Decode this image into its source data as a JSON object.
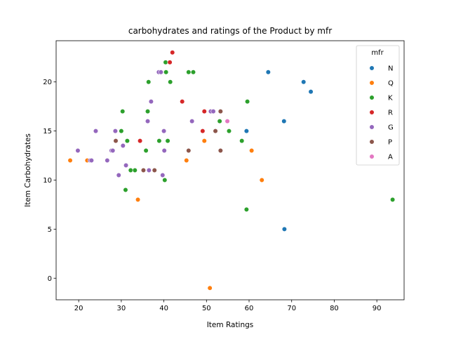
{
  "chart_data": {
    "type": "scatter",
    "title": "carbohydrates and ratings of the Product by mfr",
    "xlabel": "Item Ratings",
    "ylabel": "Item Carbohydrates",
    "xlim": [
      14.7,
      96.4
    ],
    "ylim": [
      -2.2,
      24.2
    ],
    "xticks": [
      20,
      30,
      40,
      50,
      60,
      70,
      80,
      90
    ],
    "yticks": [
      0,
      5,
      10,
      15,
      20
    ],
    "grid": false,
    "legend": {
      "title": "mfr",
      "placement": "top-right"
    },
    "series": [
      {
        "name": "N",
        "color": "#1f77b4",
        "points": [
          [
            64.5,
            21
          ],
          [
            72.8,
            20
          ],
          [
            74.5,
            19
          ],
          [
            68.2,
            16
          ],
          [
            59.4,
            15
          ],
          [
            68.3,
            5
          ]
        ]
      },
      {
        "name": "Q",
        "color": "#ff7f0e",
        "points": [
          [
            18.0,
            12
          ],
          [
            22.0,
            12
          ],
          [
            33.9,
            8
          ],
          [
            45.3,
            12
          ],
          [
            49.5,
            14
          ],
          [
            50.8,
            -1
          ],
          [
            60.6,
            13
          ],
          [
            63.0,
            10
          ]
        ]
      },
      {
        "name": "K",
        "color": "#2ca02c",
        "points": [
          [
            30.0,
            15
          ],
          [
            30.3,
            17
          ],
          [
            31.0,
            9
          ],
          [
            31.4,
            14
          ],
          [
            32.2,
            11
          ],
          [
            33.2,
            11
          ],
          [
            35.8,
            13
          ],
          [
            36.2,
            17
          ],
          [
            36.4,
            20
          ],
          [
            38.9,
            14
          ],
          [
            40.2,
            10
          ],
          [
            40.4,
            22
          ],
          [
            40.5,
            21
          ],
          [
            40.9,
            14
          ],
          [
            41.5,
            20
          ],
          [
            45.8,
            21
          ],
          [
            46.9,
            21
          ],
          [
            53.1,
            16
          ],
          [
            55.3,
            15
          ],
          [
            58.3,
            14
          ],
          [
            59.4,
            7
          ],
          [
            59.6,
            18
          ],
          [
            93.7,
            8
          ]
        ]
      },
      {
        "name": "R",
        "color": "#d62728",
        "points": [
          [
            34.4,
            14
          ],
          [
            41.4,
            22
          ],
          [
            42.0,
            23
          ],
          [
            44.3,
            18
          ],
          [
            49.1,
            15
          ],
          [
            49.5,
            17
          ]
        ]
      },
      {
        "name": "G",
        "color": "#9467bd",
        "points": [
          [
            19.8,
            13
          ],
          [
            22.7,
            12
          ],
          [
            23.0,
            12
          ],
          [
            24.0,
            15
          ],
          [
            26.7,
            12
          ],
          [
            27.7,
            13
          ],
          [
            28.0,
            13
          ],
          [
            28.6,
            15
          ],
          [
            29.4,
            10.5
          ],
          [
            30.4,
            13.5
          ],
          [
            31.1,
            11.5
          ],
          [
            36.2,
            16
          ],
          [
            36.5,
            11
          ],
          [
            37.0,
            18
          ],
          [
            38.8,
            21
          ],
          [
            39.3,
            21
          ],
          [
            39.7,
            10.5
          ],
          [
            40.0,
            15
          ],
          [
            40.1,
            13
          ],
          [
            46.6,
            16
          ],
          [
            51.0,
            17
          ],
          [
            51.6,
            17
          ]
        ]
      },
      {
        "name": "P",
        "color": "#8c564b",
        "points": [
          [
            28.7,
            14
          ],
          [
            35.2,
            11
          ],
          [
            37.8,
            11
          ],
          [
            45.8,
            13
          ],
          [
            52.1,
            15
          ],
          [
            53.3,
            17
          ],
          [
            53.3,
            13
          ]
        ]
      },
      {
        "name": "A",
        "color": "#e377c2",
        "points": [
          [
            54.9,
            16
          ]
        ]
      }
    ]
  }
}
